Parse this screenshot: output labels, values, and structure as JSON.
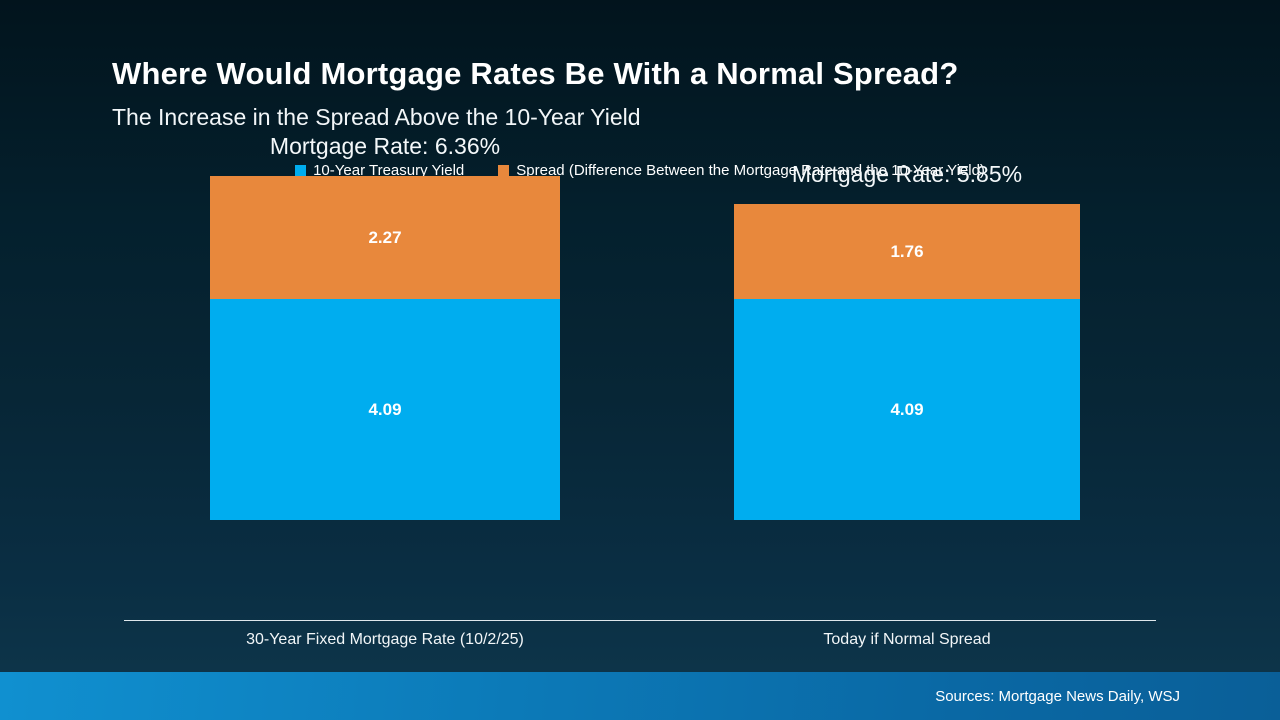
{
  "header": {
    "title": "Where Would Mortgage Rates Be With a Normal Spread?",
    "subtitle": "The Increase in the Spread Above the 10-Year Yield"
  },
  "legend": [
    {
      "label": "10-Year Treasury Yield",
      "color": "#00ADEF"
    },
    {
      "label": "Spread (Difference Between the Mortgage Rate and the 10-Year Yield)",
      "color": "#E8883C"
    }
  ],
  "footer": {
    "sources": "Sources: Mortgage News Daily, WSJ"
  },
  "colors": {
    "treasury_blue": "#00ADEF",
    "spread_orange": "#E8883C",
    "background_top": "#02141d",
    "background_bottom": "#0d3449",
    "footer_blue": "#0c7ab8"
  },
  "chart_data": {
    "type": "bar",
    "subtype": "stacked",
    "title": "Where Would Mortgage Rates Be With a Normal Spread?",
    "subtitle": "The Increase in the Spread Above the 10-Year Yield",
    "categories": [
      "30-Year Fixed Mortgage Rate (10/2/25)",
      "Today if Normal Spread"
    ],
    "series": [
      {
        "name": "10-Year Treasury Yield",
        "color": "#00ADEF",
        "values": [
          4.09,
          4.09
        ]
      },
      {
        "name": "Spread (Difference Between the Mortgage Rate and the 10-Year Yield)",
        "color": "#E8883C",
        "values": [
          2.27,
          1.76
        ]
      }
    ],
    "totals": [
      6.36,
      5.85
    ],
    "totals_labels": [
      "Mortgage Rate: 6.36%",
      "Mortgage Rate: 5.85%"
    ],
    "ylim": [
      0,
      6.8
    ],
    "grid": false,
    "legend_position": "top",
    "value_labels": "inside"
  }
}
